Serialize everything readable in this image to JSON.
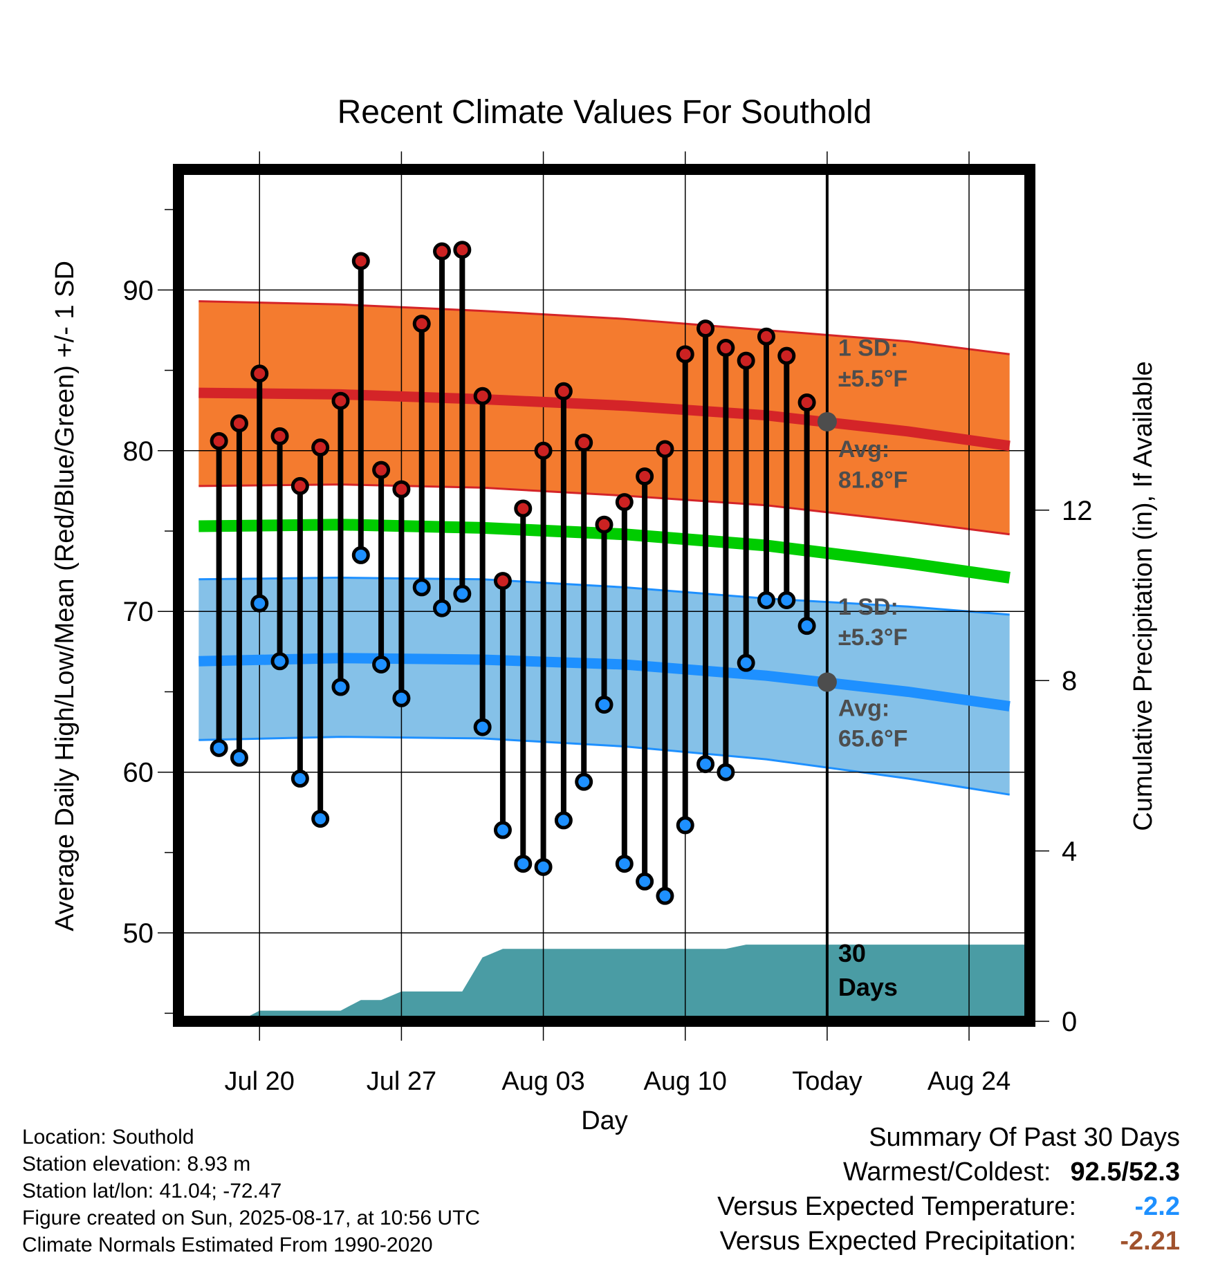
{
  "chart_data": {
    "type": "line",
    "title": "Recent Climate Values For Southold",
    "xlabel": "Day",
    "ylabel": "Average Daily High/Low/Mean (Red/Blue/Green) +/- 1 SD",
    "y2label": "Cumulative Precipitation (in), If Available",
    "ylim": [
      44.5,
      97.5
    ],
    "y2lim": [
      0,
      20
    ],
    "xlim": [
      "2025-07-16",
      "2025-08-27"
    ],
    "yticks": [
      50,
      60,
      70,
      80,
      90
    ],
    "y2ticks": [
      0,
      4,
      8,
      12
    ],
    "x_ticks": [
      {
        "date": "2025-07-20",
        "label": "Jul 20"
      },
      {
        "date": "2025-07-27",
        "label": "Jul 27"
      },
      {
        "date": "2025-08-03",
        "label": "Aug 03"
      },
      {
        "date": "2025-08-10",
        "label": "Aug 10"
      },
      {
        "date": "2025-08-17",
        "label": "Today"
      },
      {
        "date": "2025-08-24",
        "label": "Aug 24"
      }
    ],
    "grid": true,
    "today": "2025-08-17",
    "normals": {
      "dates": [
        "2025-07-17",
        "2025-07-24",
        "2025-07-31",
        "2025-08-07",
        "2025-08-14",
        "2025-08-21",
        "2025-08-26"
      ],
      "high_mean": [
        83.6,
        83.5,
        83.2,
        82.8,
        82.2,
        81.2,
        80.3
      ],
      "high_upper": [
        89.3,
        89.1,
        88.7,
        88.2,
        87.5,
        86.8,
        86.0
      ],
      "high_lower": [
        77.8,
        77.9,
        77.7,
        77.2,
        76.6,
        75.6,
        74.8
      ],
      "low_mean": [
        66.9,
        67.1,
        67.0,
        66.7,
        66.0,
        65.0,
        64.1
      ],
      "low_upper": [
        72.0,
        72.1,
        72.0,
        71.5,
        70.8,
        70.3,
        69.8
      ],
      "low_lower": [
        62.0,
        62.2,
        62.1,
        61.6,
        60.8,
        59.6,
        58.6
      ],
      "mean": [
        75.3,
        75.4,
        75.2,
        74.8,
        74.1,
        73.0,
        72.1
      ]
    },
    "series": [
      {
        "name": "Red",
        "values": [
          80.6,
          81.7,
          84.8,
          80.9,
          77.8,
          80.2,
          83.1,
          91.8,
          78.8,
          77.6,
          87.9,
          92.4,
          92.5,
          83.4,
          71.9,
          76.4,
          80.0,
          83.7,
          80.5,
          75.4,
          76.8,
          78.4,
          80.1,
          86.0,
          87.6,
          86.4,
          85.6,
          87.1,
          85.9,
          83.0
        ]
      },
      {
        "name": "Blue",
        "values": [
          61.5,
          60.9,
          70.5,
          66.9,
          59.6,
          57.1,
          65.3,
          73.5,
          66.7,
          64.6,
          71.5,
          70.2,
          71.1,
          62.8,
          56.4,
          54.3,
          54.1,
          57.0,
          59.4,
          64.2,
          54.3,
          53.2,
          52.3,
          56.7,
          60.5,
          60.0,
          66.8,
          70.7,
          70.7,
          69.1
        ]
      }
    ],
    "days": [
      "2025-07-18",
      "2025-07-19",
      "2025-07-20",
      "2025-07-21",
      "2025-07-22",
      "2025-07-23",
      "2025-07-24",
      "2025-07-25",
      "2025-07-26",
      "2025-07-27",
      "2025-07-28",
      "2025-07-29",
      "2025-07-30",
      "2025-07-31",
      "2025-08-01",
      "2025-08-02",
      "2025-08-03",
      "2025-08-04",
      "2025-08-05",
      "2025-08-06",
      "2025-08-07",
      "2025-08-08",
      "2025-08-09",
      "2025-08-10",
      "2025-08-11",
      "2025-08-12",
      "2025-08-13",
      "2025-08-14",
      "2025-08-15",
      "2025-08-16"
    ],
    "precip_cumulative": {
      "dates": [
        "2025-07-16",
        "2025-07-19",
        "2025-07-20",
        "2025-07-24",
        "2025-07-25",
        "2025-07-26",
        "2025-07-27",
        "2025-07-30",
        "2025-07-31",
        "2025-08-01",
        "2025-08-12",
        "2025-08-13",
        "2025-08-27"
      ],
      "values": [
        0.0,
        0.0,
        0.25,
        0.25,
        0.5,
        0.5,
        0.7,
        0.7,
        1.5,
        1.7,
        1.7,
        1.8,
        1.8
      ]
    },
    "annotations": {
      "high_sd_title": "1 SD:",
      "high_sd_value": "±5.5°F",
      "high_avg_title": "Avg:",
      "high_avg_value": "81.8°F",
      "high_avg_today": 81.8,
      "low_sd_title": "1 SD:",
      "low_sd_value": "±5.3°F",
      "low_avg_title": "Avg:",
      "low_avg_value": "65.6°F",
      "low_avg_today": 65.6,
      "period_count": "30",
      "period_unit": "Days"
    },
    "colors": {
      "high_band": "#f47b2f",
      "high_line": "#d42428",
      "low_band": "#85c1e8",
      "low_line": "#1e90ff",
      "mean_line": "#00cc00",
      "precip": "#4a9ca4",
      "high_dot": "#cc2222",
      "low_dot": "#1e90ff",
      "annotation": "#4d4d4d"
    }
  },
  "footer": {
    "location": "Location: Southold",
    "elevation": "Station elevation: 8.93 m",
    "latlon": "Station lat/lon: 41.04; -72.47",
    "created": "Figure created on Sun, 2025-08-17, at 10:56 UTC",
    "normals": "Climate Normals Estimated From 1990-2020"
  },
  "summary": {
    "title": "Summary Of Past 30 Days",
    "warmest_label": "Warmest/Coldest:",
    "warmest_value": "92.5",
    "coldest_value": "52.3",
    "temp_label": "Versus Expected Temperature:",
    "temp_value": "-2.2",
    "temp_color": "#1e90ff",
    "precip_label": "Versus Expected Precipitation:",
    "precip_value": "-2.21",
    "precip_color": "#a0522d"
  }
}
